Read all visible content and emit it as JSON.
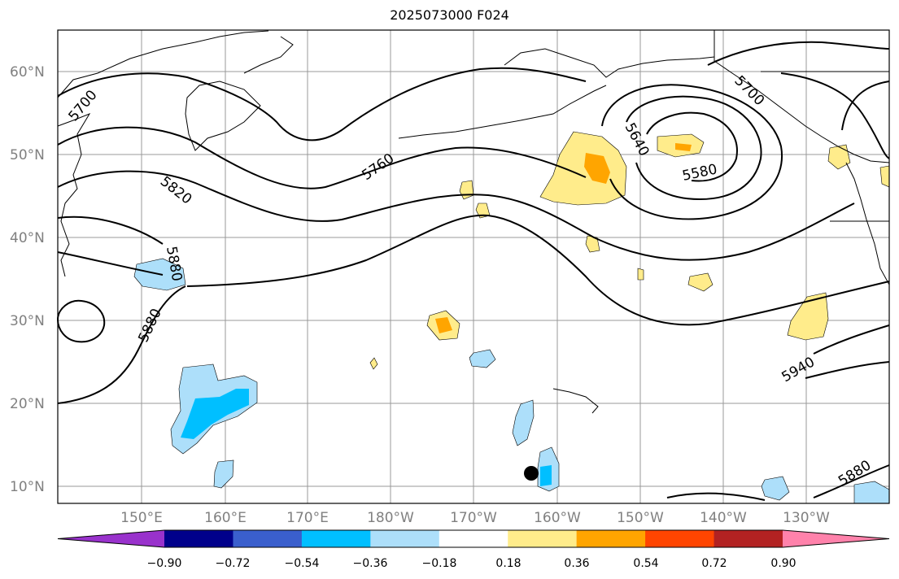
{
  "title": "2025073000 F024",
  "lat_labels": [
    "60°N",
    "50°N",
    "40°N",
    "30°N",
    "20°N",
    "10°N"
  ],
  "lon_labels": [
    "150°E",
    "160°E",
    "170°E",
    "180°W",
    "170°W",
    "160°W",
    "150°W",
    "140°W",
    "130°W"
  ],
  "contour_labels": [
    "5700",
    "5760",
    "5820",
    "5880",
    "5880",
    "5640",
    "5580",
    "5700",
    "5940",
    "5880"
  ],
  "colorbar": {
    "ticks": [
      "−0.90",
      "−0.72",
      "−0.54",
      "−0.36",
      "−0.18",
      "0.18",
      "0.36",
      "0.54",
      "0.72",
      "0.90"
    ],
    "colors": [
      "#9932CC",
      "#00008B",
      "#3A5FCD",
      "#00BFFF",
      "#ADDFFA",
      "#FFFFFF",
      "#FFEC8B",
      "#FFA500",
      "#FF4500",
      "#B22222",
      "#FF82AB"
    ]
  },
  "legend_marker": "black-dot"
}
